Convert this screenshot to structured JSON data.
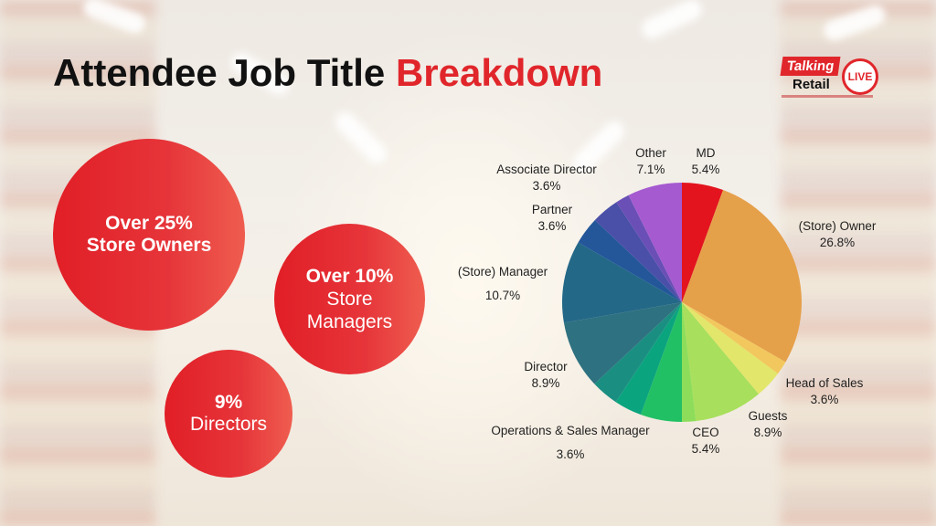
{
  "title": {
    "part1": "Attendee Job Title",
    "part2": "Breakdown"
  },
  "logo": {
    "word1": "Talking",
    "word2": "Retail",
    "badge": "LIVE"
  },
  "highlights": [
    {
      "line1": "Over 25%",
      "line2": "Store Owners"
    },
    {
      "line1": "Over 10%",
      "line2": "Store",
      "line3": "Managers"
    },
    {
      "line1": "9%",
      "line2": "Directors"
    }
  ],
  "chart_data": {
    "type": "pie",
    "title": "",
    "slices": [
      {
        "label": "MD",
        "value": 5.4,
        "display": "5.4%",
        "color": "#e3141e"
      },
      {
        "label": "(Store) Owner",
        "value": 26.8,
        "display": "26.8%",
        "color": "#e5a04a"
      },
      {
        "label": "",
        "value": 1.8,
        "display": "",
        "color": "#f2c85e"
      },
      {
        "label": "Head of Sales",
        "value": 3.6,
        "display": "3.6%",
        "color": "#e2e66a"
      },
      {
        "label": "Guests",
        "value": 8.9,
        "display": "8.9%",
        "color": "#a8df5c"
      },
      {
        "label": "",
        "value": 1.8,
        "display": "",
        "color": "#8ddd5a"
      },
      {
        "label": "CEO",
        "value": 5.4,
        "display": "5.4%",
        "color": "#22c065"
      },
      {
        "label": "Operations & Sales Manager",
        "value": 3.6,
        "display": "3.6%",
        "color": "#0aa47e"
      },
      {
        "label": "",
        "value": 3.6,
        "display": "",
        "color": "#1b8e82"
      },
      {
        "label": "Director",
        "value": 8.9,
        "display": "8.9%",
        "color": "#2e7180"
      },
      {
        "label": "(Store) Manager",
        "value": 10.7,
        "display": "10.7%",
        "color": "#236887"
      },
      {
        "label": "Partner",
        "value": 3.6,
        "display": "3.6%",
        "color": "#23579a"
      },
      {
        "label": "Associate Director",
        "value": 3.6,
        "display": "3.6%",
        "color": "#4a4fa8"
      },
      {
        "label": "",
        "value": 1.8,
        "display": "",
        "color": "#6a4fb6"
      },
      {
        "label": "Other",
        "value": 7.1,
        "display": "7.1%",
        "color": "#a55ad0"
      }
    ]
  }
}
